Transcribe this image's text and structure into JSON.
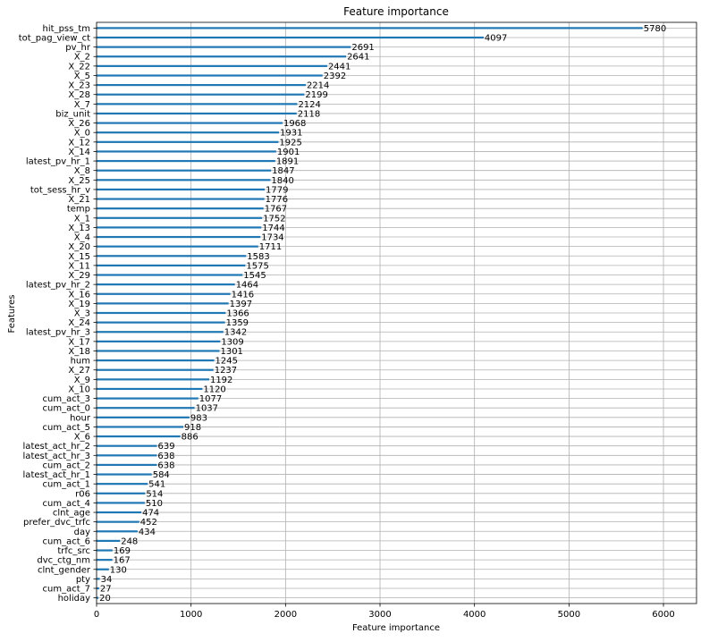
{
  "chart_data": {
    "type": "bar",
    "orientation": "horizontal",
    "title": "Feature importance",
    "xlabel": "Feature importance",
    "ylabel": "Features",
    "xlim": [
      0,
      6350
    ],
    "xticks": [
      0,
      1000,
      2000,
      3000,
      4000,
      5000,
      6000
    ],
    "grid": true,
    "colors": {
      "bar": "#1f77b4",
      "grid": "#b0b0b0",
      "axis": "#000000"
    },
    "categories": [
      "hit_pss_tm",
      "tot_pag_view_ct",
      "pv_hr",
      "X_2",
      "X_22",
      "X_5",
      "X_23",
      "X_28",
      "X_7",
      "biz_unit",
      "X_26",
      "X_0",
      "X_12",
      "X_14",
      "latest_pv_hr_1",
      "X_8",
      "X_25",
      "tot_sess_hr_v",
      "X_21",
      "temp",
      "X_1",
      "X_13",
      "X_4",
      "X_20",
      "X_15",
      "X_11",
      "X_29",
      "latest_pv_hr_2",
      "X_16",
      "X_19",
      "X_3",
      "X_24",
      "latest_pv_hr_3",
      "X_17",
      "X_18",
      "hum",
      "X_27",
      "X_9",
      "X_10",
      "cum_act_3",
      "cum_act_0",
      "hour",
      "cum_act_5",
      "X_6",
      "latest_act_hr_2",
      "latest_act_hr_3",
      "cum_act_2",
      "latest_act_hr_1",
      "cum_act_1",
      "r06",
      "cum_act_4",
      "clnt_age",
      "prefer_dvc_trfc",
      "day",
      "cum_act_6",
      "trfc_src",
      "dvc_ctg_nm",
      "clnt_gender",
      "pty",
      "cum_act_7",
      "holiday"
    ],
    "values": [
      5780,
      4097,
      2691,
      2641,
      2441,
      2392,
      2214,
      2199,
      2124,
      2118,
      1968,
      1931,
      1925,
      1901,
      1891,
      1847,
      1840,
      1779,
      1776,
      1767,
      1752,
      1744,
      1734,
      1711,
      1583,
      1575,
      1545,
      1464,
      1416,
      1397,
      1366,
      1359,
      1342,
      1309,
      1301,
      1245,
      1237,
      1192,
      1120,
      1077,
      1037,
      983,
      918,
      886,
      639,
      638,
      638,
      584,
      541,
      514,
      510,
      474,
      452,
      434,
      248,
      169,
      167,
      130,
      34,
      27,
      20
    ]
  }
}
